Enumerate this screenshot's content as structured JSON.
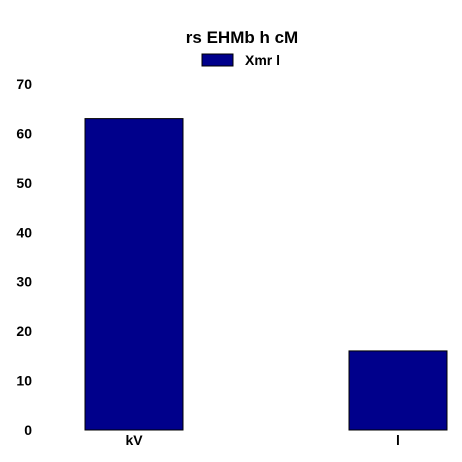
{
  "chart_data": {
    "type": "bar",
    "title": "rs EHMb h cM",
    "categories": [
      "kV",
      "l"
    ],
    "series": [
      {
        "name": "Xmr l",
        "values": [
          63,
          16
        ],
        "color": "#00008b"
      }
    ],
    "ylim": [
      0,
      70
    ],
    "yticks": [
      0,
      10,
      20,
      30,
      40,
      50,
      60,
      70
    ],
    "grid": false,
    "legend": "top-center",
    "xlabel": "",
    "ylabel": ""
  }
}
